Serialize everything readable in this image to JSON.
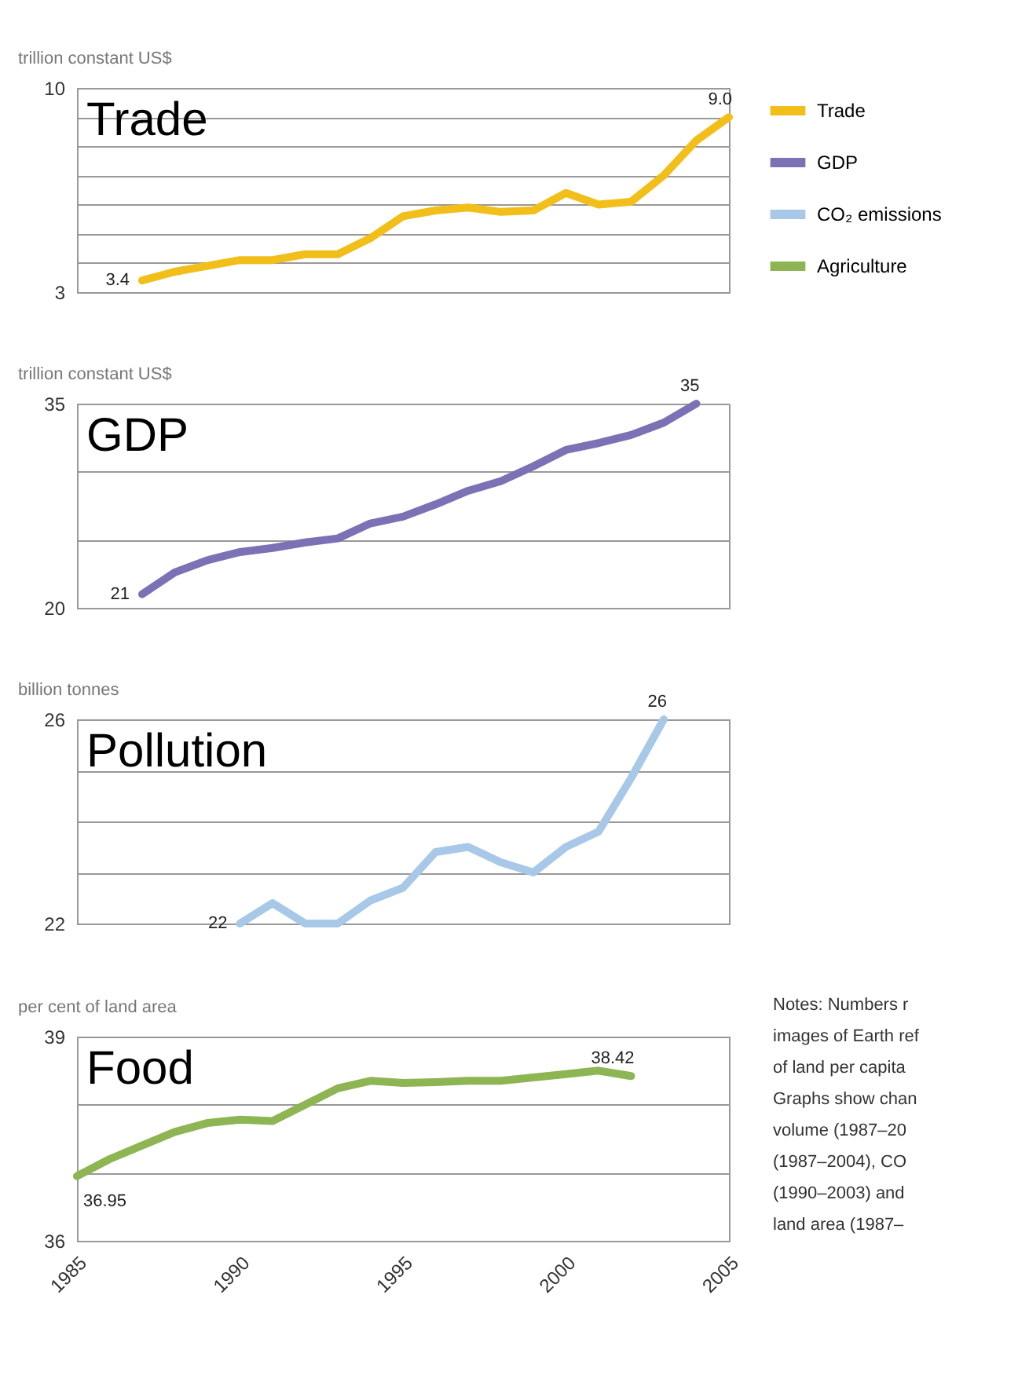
{
  "chart_data": [
    {
      "type": "line",
      "ylabel": "trillion constant US$",
      "annotations": [
        "Trade"
      ],
      "x": [
        1987,
        1988,
        1989,
        1990,
        1991,
        1992,
        1993,
        1994,
        1995,
        1996,
        1997,
        1998,
        1999,
        2000,
        2001,
        2002,
        2003,
        2004,
        2005
      ],
      "series": [
        {
          "name": "Trade",
          "color": "#f2be1a",
          "values": [
            3.4,
            3.7,
            3.9,
            4.1,
            4.1,
            4.3,
            4.3,
            4.85,
            5.6,
            5.8,
            5.9,
            5.75,
            5.8,
            6.4,
            6.0,
            6.1,
            7.0,
            8.2,
            9.0
          ],
          "value_labels": [
            "3.4",
            null,
            null,
            null,
            null,
            null,
            null,
            null,
            null,
            null,
            null,
            null,
            null,
            null,
            null,
            null,
            null,
            null,
            "9.0"
          ]
        }
      ],
      "xlim": [
        1985,
        2005
      ],
      "xticks": [
        1985,
        1990,
        1995,
        2000,
        2005
      ],
      "ylim": [
        3,
        10
      ],
      "yticks": [
        3,
        {
          "value": 4,
          "label": null
        },
        {
          "value": 5,
          "label": null
        },
        {
          "value": 6,
          "label": null
        },
        {
          "value": 7,
          "label": null
        },
        {
          "value": 8,
          "label": null
        },
        {
          "value": 9,
          "label": null
        },
        10
      ],
      "grid": "y",
      "tick_labels": "y",
      "legend": "top right",
      "line_style": "solid",
      "marker": "none"
    },
    {
      "type": "line",
      "ylabel": "trillion constant US$",
      "annotations": [
        "GDP"
      ],
      "x": [
        1987,
        1988,
        1989,
        1990,
        1991,
        1992,
        1993,
        1994,
        1995,
        1996,
        1997,
        1998,
        1999,
        2000,
        2001,
        2002,
        2003,
        2004
      ],
      "series": [
        {
          "name": "GDP",
          "color": "#7b72b6",
          "values": [
            21,
            22.6,
            23.5,
            24.1,
            24.4,
            24.8,
            25.1,
            26.2,
            26.7,
            27.6,
            28.6,
            29.3,
            30.4,
            31.6,
            32.1,
            32.7,
            33.6,
            35
          ],
          "value_labels": [
            "21",
            null,
            null,
            null,
            null,
            null,
            null,
            null,
            null,
            null,
            null,
            null,
            null,
            null,
            null,
            null,
            null,
            "35"
          ]
        }
      ],
      "xlim": [
        1985,
        2005
      ],
      "xticks": [
        1985,
        1990,
        1995,
        2000,
        2005
      ],
      "ylim": [
        20,
        35
      ],
      "yticks": [
        20,
        {
          "value": 25,
          "label": null
        },
        {
          "value": 30,
          "label": null
        },
        35
      ],
      "grid": "y",
      "tick_labels": "y",
      "line_style": "solid",
      "marker": "none"
    },
    {
      "type": "line",
      "ylabel": "billion tonnes",
      "annotations": [
        "Pollution"
      ],
      "x": [
        1990,
        1991,
        1992,
        1993,
        1994,
        1995,
        1996,
        1997,
        1998,
        1999,
        2000,
        2001,
        2002,
        2003
      ],
      "series": [
        {
          "name": "CO₂ emissions",
          "color": "#a8c8e8",
          "values": [
            22.0,
            22.4,
            22.0,
            22.0,
            22.45,
            22.7,
            23.4,
            23.5,
            23.2,
            23.0,
            23.5,
            23.8,
            24.85,
            26
          ],
          "value_labels": [
            "22",
            null,
            null,
            null,
            null,
            null,
            null,
            null,
            null,
            null,
            null,
            null,
            null,
            "26"
          ]
        }
      ],
      "xlim": [
        1985,
        2005
      ],
      "xticks": [
        1985,
        1990,
        1995,
        2000,
        2005
      ],
      "ylim": [
        22,
        26
      ],
      "yticks": [
        22,
        {
          "value": 23,
          "label": null
        },
        {
          "value": 24,
          "label": null
        },
        {
          "value": 25,
          "label": null
        },
        26
      ],
      "grid": "y",
      "tick_labels": "y",
      "line_style": "solid",
      "marker": "none"
    },
    {
      "type": "line",
      "ylabel": "per cent of land area",
      "annotations": [
        "Food",
        "Notes: Numbers r",
        "images of Earth ref",
        "of land per capita",
        "Graphs show chan",
        "volume (1987–20",
        "(1987–2004), CO",
        "(1990–2003) and",
        "land area (1987–"
      ],
      "x": [
        1985,
        1986,
        1987,
        1988,
        1989,
        1990,
        1991,
        1992,
        1993,
        1994,
        1995,
        1996,
        1997,
        1998,
        1999,
        2000,
        2001,
        2002
      ],
      "series": [
        {
          "name": "Agriculture",
          "color": "#8db553",
          "values": [
            36.95,
            37.2,
            37.4,
            37.6,
            37.73,
            37.78,
            37.76,
            38.0,
            38.24,
            38.35,
            38.32,
            38.33,
            38.35,
            38.35,
            38.4,
            38.45,
            38.5,
            38.42
          ],
          "value_labels": [
            "36.95",
            null,
            null,
            null,
            null,
            null,
            null,
            null,
            null,
            null,
            null,
            null,
            null,
            null,
            null,
            null,
            null,
            "38.42"
          ]
        }
      ],
      "xlim": [
        1985,
        2005
      ],
      "xticks": [
        1985,
        1990,
        1995,
        2000,
        2005
      ],
      "ylim": [
        36,
        39
      ],
      "yticks": [
        36,
        {
          "value": 37,
          "label": null
        },
        {
          "value": 38,
          "label": null
        },
        39
      ],
      "grid": "y",
      "line_style": "solid",
      "marker": "none"
    }
  ]
}
